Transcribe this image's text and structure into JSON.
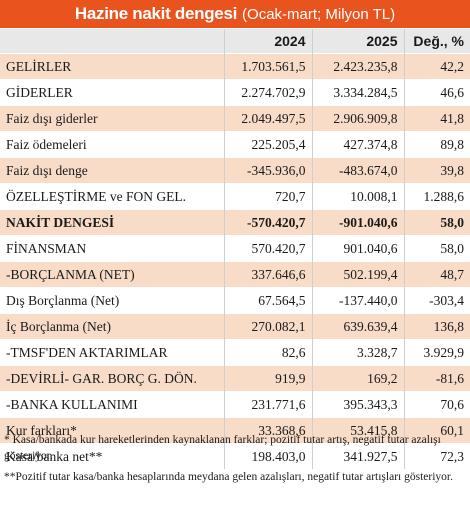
{
  "title": {
    "main": "Hazine nakit dengesi",
    "sub": "(Ocak-mart; Milyon TL)"
  },
  "colors": {
    "accent": "#e8531e",
    "row_tint": "#f8dcc8",
    "header_bg": "#e8e8e8"
  },
  "columns": [
    "2024",
    "2025",
    "Değ., %"
  ],
  "rows": [
    {
      "label": "GELİRLER",
      "v2024": "1.703.561,5",
      "v2025": "2.423.235,8",
      "change": "42,2"
    },
    {
      "label": "GİDERLER",
      "v2024": "2.274.702,9",
      "v2025": "3.334.284,5",
      "change": "46,6"
    },
    {
      "label": "Faiz dışı giderler",
      "v2024": "2.049.497,5",
      "v2025": "2.906.909,8",
      "change": "41,8"
    },
    {
      "label": "Faiz ödemeleri",
      "v2024": "225.205,4",
      "v2025": "427.374,8",
      "change": "89,8"
    },
    {
      "label": "Faiz dışı denge",
      "v2024": "-345.936,0",
      "v2025": "-483.674,0",
      "change": "39,8"
    },
    {
      "label": "ÖZELLEŞTİRME ve FON GEL.",
      "v2024": "720,7",
      "v2025": "10.008,1",
      "change": "1.288,6"
    },
    {
      "label": "NAKİT DENGESİ",
      "v2024": "-570.420,7",
      "v2025": "-901.040,6",
      "change": "58,0"
    },
    {
      "label": "FİNANSMAN",
      "v2024": "570.420,7",
      "v2025": "901.040,6",
      "change": "58,0"
    },
    {
      "label": "-BORÇLANMA (NET)",
      "v2024": "337.646,6",
      "v2025": "502.199,4",
      "change": "48,7"
    },
    {
      "label": "Dış Borçlanma (Net)",
      "v2024": "67.564,5",
      "v2025": "-137.440,0",
      "change": "-303,4"
    },
    {
      "label": "İç Borçlanma (Net)",
      "v2024": "270.082,1",
      "v2025": "639.639,4",
      "change": "136,8"
    },
    {
      "label": "-TMSF'DEN AKTARIMLAR",
      "v2024": "82,6",
      "v2025": "3.328,7",
      "change": "3.929,9"
    },
    {
      "label": "-DEVİRLİ- GAR. BORÇ G. DÖN.",
      "v2024": "919,9",
      "v2025": "169,2",
      "change": "-81,6"
    },
    {
      "label": "-BANKA KULLANIMI",
      "v2024": "231.771,6",
      "v2025": "395.343,3",
      "change": "70,6"
    },
    {
      "label": "Kur farkları*",
      "v2024": "33.368,6",
      "v2025": "53.415,8",
      "change": "60,1"
    },
    {
      "label": "Kasa/banka net**",
      "v2024": "198.403,0",
      "v2025": "341.927,5",
      "change": "72,3"
    }
  ],
  "notes": [
    "* Kasa/bankada kur hareketlerinden kaynaklanan farklar; pozitif tutar artış, negatif tutar azalışı gösteriyor.",
    "**Pozitif tutar kasa/banka hesaplarında meydana gelen azalışları, negatif tutar artışları gösteriyor."
  ]
}
